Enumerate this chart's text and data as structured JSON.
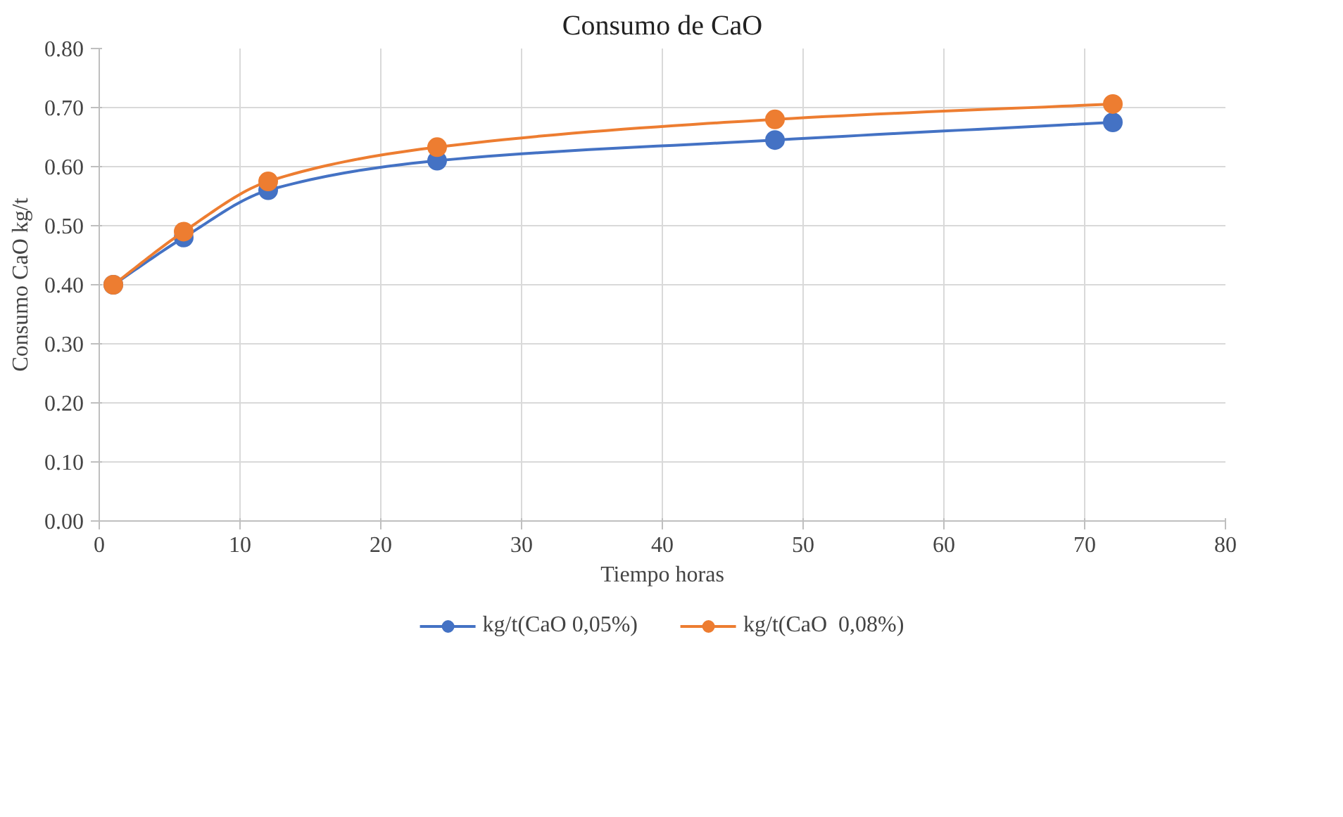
{
  "chart_data": {
    "type": "line",
    "title": "Consumo de CaO",
    "xlabel": "Tiempo horas",
    "ylabel": "Consumo CaO kg/t",
    "x": [
      1,
      6,
      12,
      24,
      48,
      72
    ],
    "series": [
      {
        "name": "kg/t(CaO 0,05%)",
        "color": "#4472c4",
        "values": [
          0.4,
          0.48,
          0.56,
          0.61,
          0.645,
          0.675
        ]
      },
      {
        "name": "kg/t(CaO  0,08%)",
        "color": "#ed7d31",
        "values": [
          0.4,
          0.49,
          0.575,
          0.633,
          0.68,
          0.706
        ]
      }
    ],
    "xlim": [
      0,
      80
    ],
    "xticks": [
      0,
      10,
      20,
      30,
      40,
      50,
      60,
      70,
      80
    ],
    "ylim": [
      0,
      0.8
    ],
    "yticks": [
      {
        "value": 0,
        "label": "0.00"
      },
      {
        "value": 0.1,
        "label": "0.10"
      },
      {
        "value": 0.2,
        "label": "0.20"
      },
      {
        "value": 0.3,
        "label": "0.30"
      },
      {
        "value": 0.4,
        "label": "0.40"
      },
      {
        "value": 0.5,
        "label": "0.50"
      },
      {
        "value": 0.6,
        "label": "0.60"
      },
      {
        "value": 0.7,
        "label": "0.70"
      },
      {
        "value": 0.8,
        "label": "0.80"
      }
    ],
    "grid": true,
    "legend": "bottom",
    "marker": "circle",
    "line_style": "solid"
  }
}
